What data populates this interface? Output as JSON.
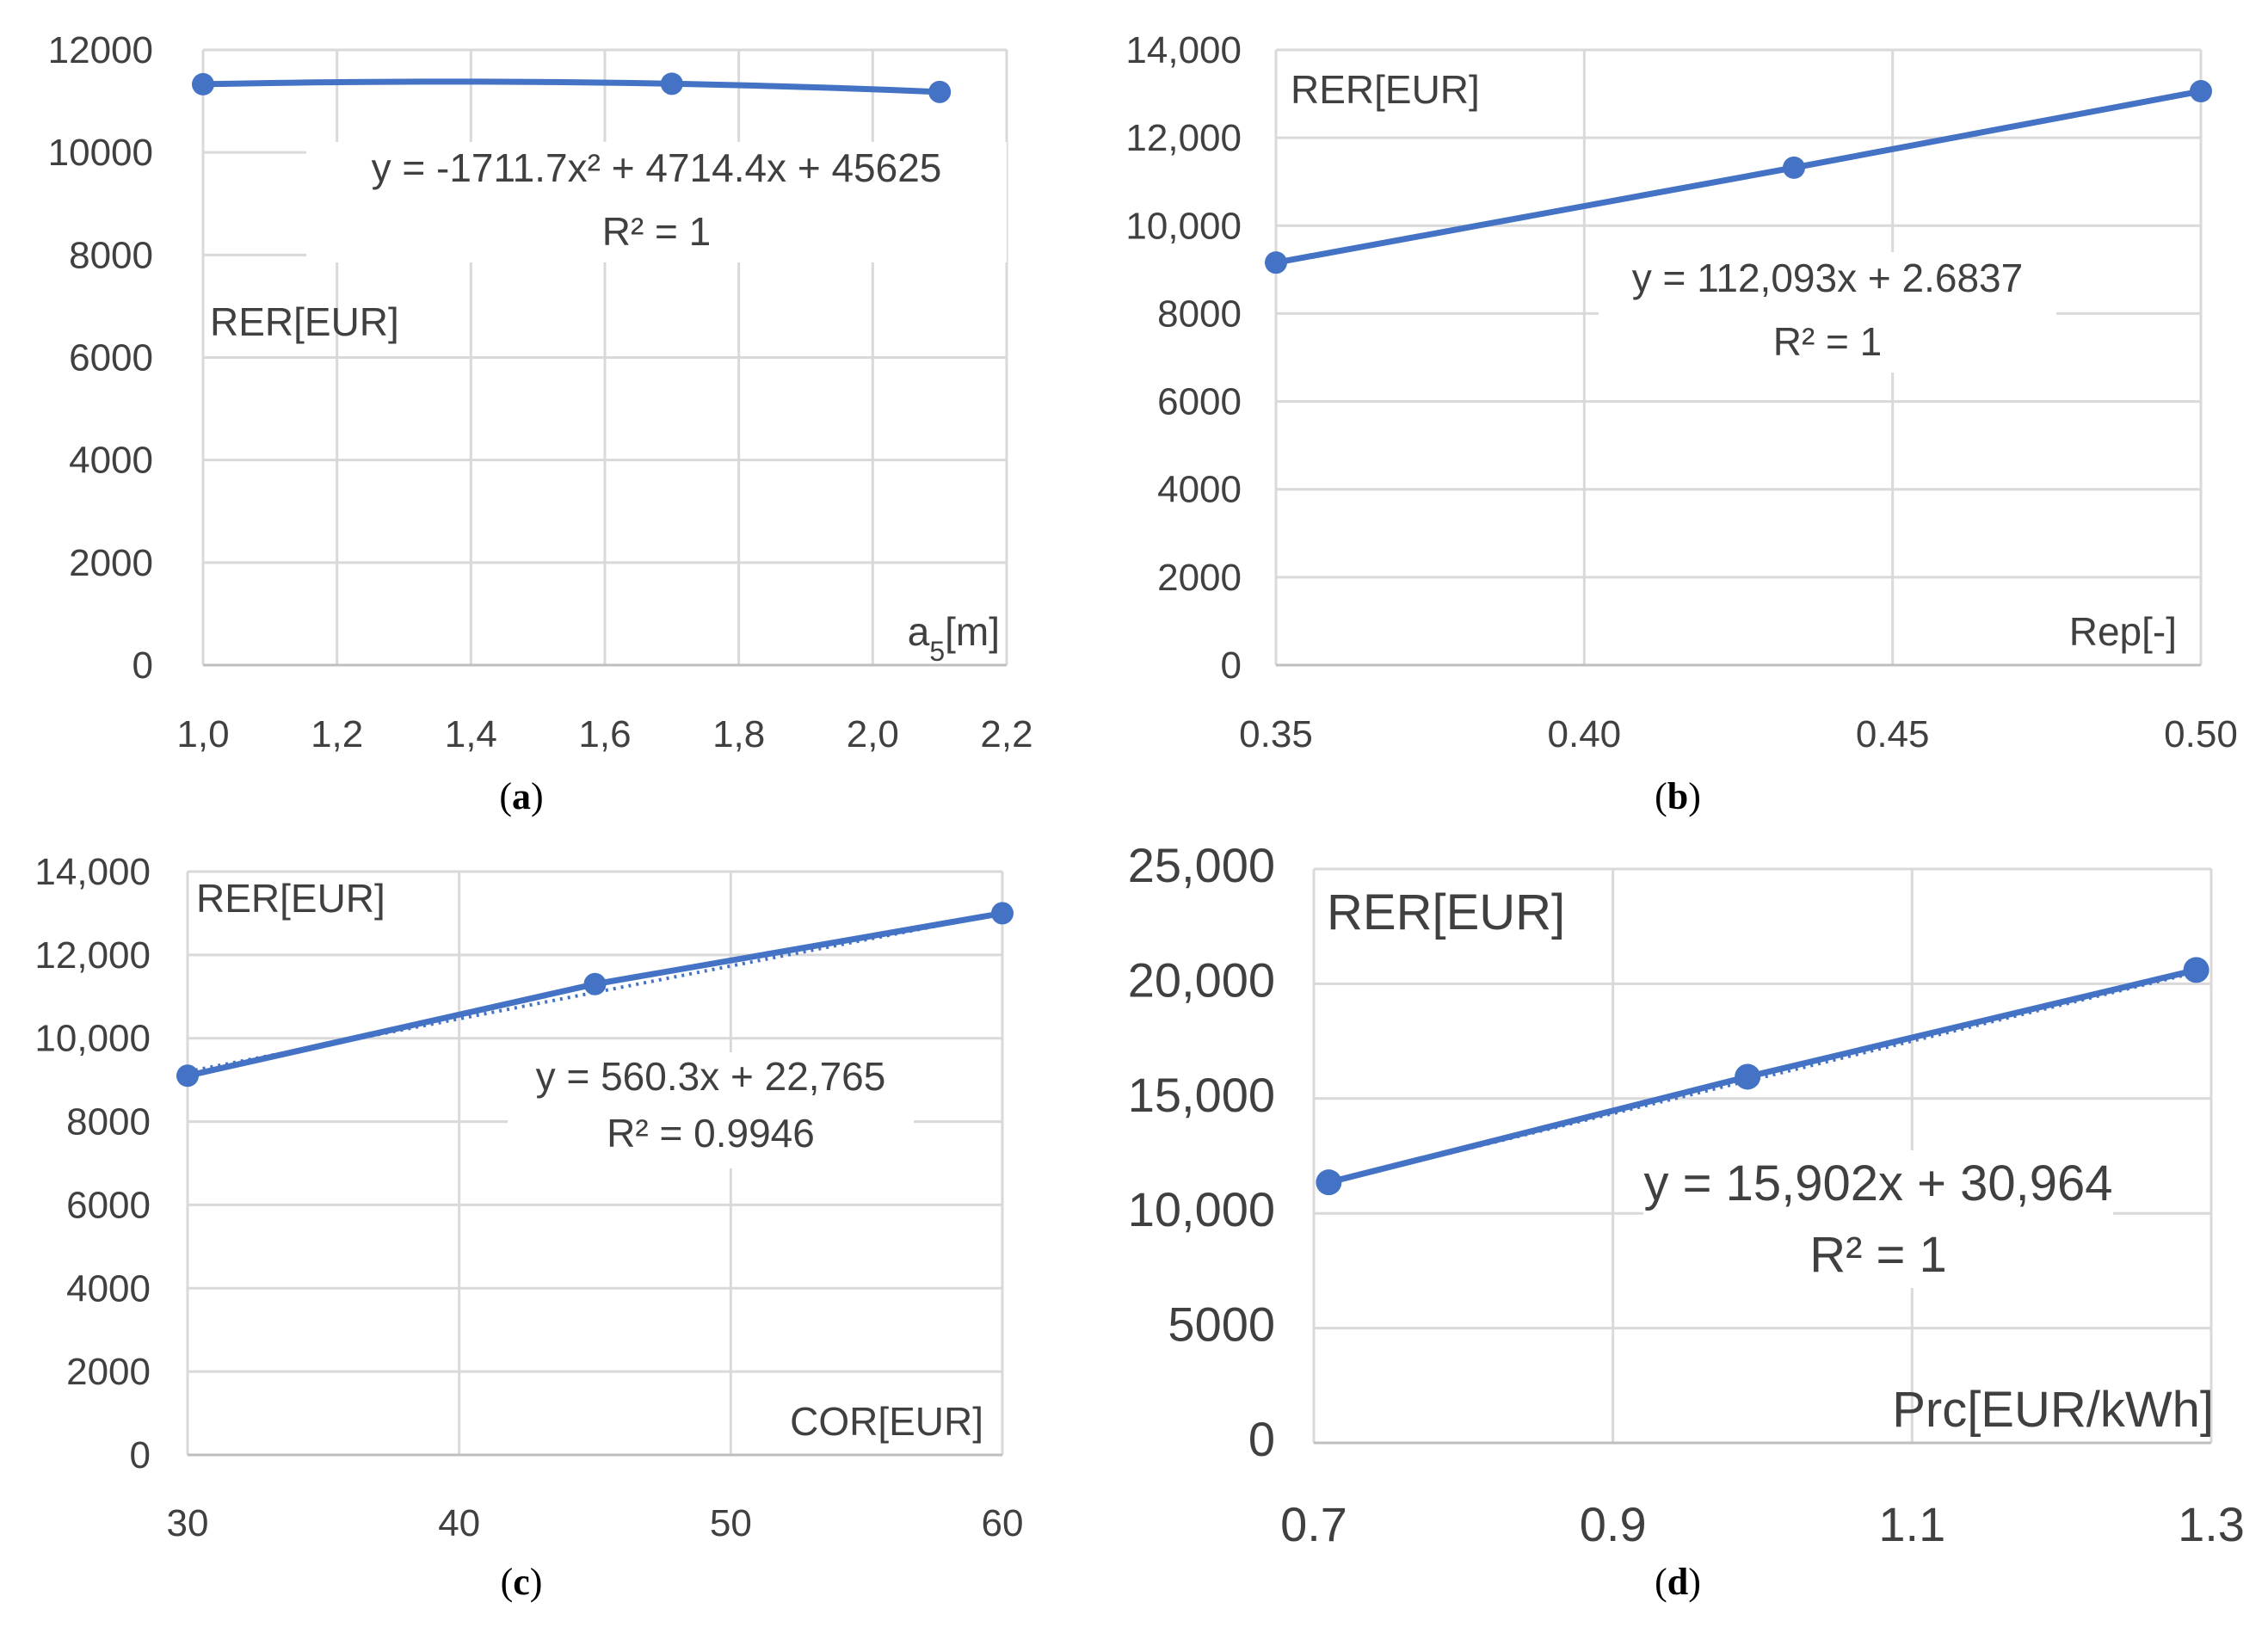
{
  "chart_data": [
    {
      "panel": "a",
      "type": "scatter",
      "xlabel": "a",
      "xlabel_sub": "5",
      "xlabel_unit": "[m]",
      "ylabel": "RER[EUR]",
      "xlim": [
        1.0,
        2.2
      ],
      "ylim": [
        0,
        12000
      ],
      "xticks": [
        1.0,
        1.2,
        1.4,
        1.6,
        1.8,
        2.0,
        2.2
      ],
      "xtick_labels": [
        "1,0",
        "1,2",
        "1,4",
        "1,6",
        "1,8",
        "2,0",
        "2,2"
      ],
      "yticks": [
        0,
        2000,
        4000,
        6000,
        8000,
        10000,
        12000
      ],
      "ytick_labels": [
        "0",
        "2000",
        "4000",
        "6000",
        "8000",
        "10000",
        "12000"
      ],
      "series": [
        {
          "name": "RER",
          "x": [
            1.0,
            1.7,
            2.1
          ],
          "y": [
            11330,
            11340,
            11180
          ]
        }
      ],
      "trendline": {
        "kind": "poly2",
        "coef": [
          -1711.7,
          4714.4,
          45625
        ]
      },
      "equation": "y = -1711.7x² + 4714.4x + 45625",
      "r2": "R² = 1",
      "panel_label": "a"
    },
    {
      "panel": "b",
      "type": "scatter",
      "xlabel": "Rep[-]",
      "ylabel": "RER[EUR]",
      "xlim": [
        0.35,
        0.5
      ],
      "ylim": [
        0,
        14000
      ],
      "xticks": [
        0.35,
        0.4,
        0.45,
        0.5
      ],
      "xtick_labels": [
        "0.35",
        "0.40",
        "0.45",
        "0.50"
      ],
      "yticks": [
        0,
        2000,
        4000,
        6000,
        8000,
        10000,
        12000,
        14000
      ],
      "ytick_labels": [
        "0",
        "2000",
        "4000",
        "6000",
        "8000",
        "10,000",
        "12,000",
        "14,000"
      ],
      "series": [
        {
          "name": "RER",
          "x": [
            0.35,
            0.434,
            0.5
          ],
          "y": [
            9160,
            11320,
            13060
          ]
        }
      ],
      "trendline": {
        "kind": "linear",
        "points": [
          [
            0.35,
            9160
          ],
          [
            0.5,
            13060
          ]
        ]
      },
      "equation": "y = 112,093x + 2.6837",
      "r2": "R² = 1",
      "panel_label": "b"
    },
    {
      "panel": "c",
      "type": "scatter",
      "xlabel": "COR[EUR]",
      "ylabel": "RER[EUR]",
      "xlim": [
        30,
        60
      ],
      "ylim": [
        0,
        14000
      ],
      "xticks": [
        30,
        40,
        50,
        60
      ],
      "xtick_labels": [
        "30",
        "40",
        "50",
        "60"
      ],
      "yticks": [
        0,
        2000,
        4000,
        6000,
        8000,
        10000,
        12000,
        14000
      ],
      "ytick_labels": [
        "0",
        "2000",
        "4000",
        "6000",
        "8000",
        "10,000",
        "12,000",
        "14,000"
      ],
      "series": [
        {
          "name": "RER",
          "x": [
            30,
            45,
            60
          ],
          "y": [
            9100,
            11300,
            13000
          ]
        }
      ],
      "trendline": {
        "kind": "linear",
        "points": [
          [
            30,
            9200
          ],
          [
            60,
            13000
          ]
        ]
      },
      "equation": "y = 560.3x + 22,765",
      "r2": "R² = 0.9946",
      "panel_label": "c"
    },
    {
      "panel": "d",
      "type": "scatter",
      "xlabel": "Prc[EUR/kWh]",
      "ylabel": "RER[EUR]",
      "xlim": [
        0.7,
        1.3
      ],
      "ylim": [
        0,
        25000
      ],
      "xticks": [
        0.7,
        0.9,
        1.1,
        1.3
      ],
      "xtick_labels": [
        "0.7",
        "0.9",
        "1.1",
        "1.3"
      ],
      "yticks": [
        0,
        5000,
        10000,
        15000,
        20000,
        25000
      ],
      "ytick_labels": [
        "0",
        "5000",
        "10,000",
        "15,000",
        "20,000",
        "25,000"
      ],
      "series": [
        {
          "name": "RER",
          "x": [
            0.71,
            0.99,
            1.29
          ],
          "y": [
            11350,
            15950,
            20600
          ]
        }
      ],
      "trendline": {
        "kind": "linear",
        "points": [
          [
            0.71,
            11350
          ],
          [
            1.29,
            20500
          ]
        ]
      },
      "equation": "y = 15,902x + 30,964",
      "r2": "R² = 1",
      "panel_label": "d"
    }
  ],
  "colors": {
    "series": "#4472c4",
    "grid": "#d9d9d9",
    "text": "#404040"
  }
}
